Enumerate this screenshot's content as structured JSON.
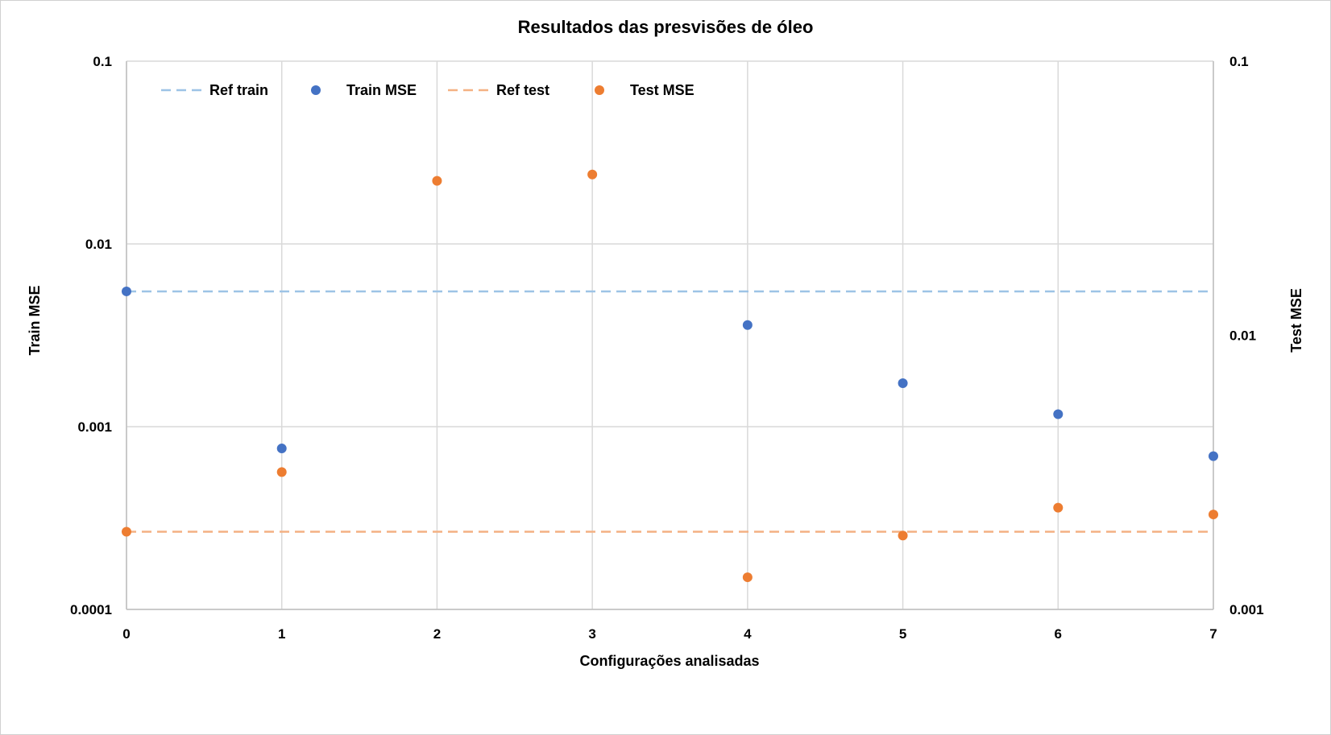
{
  "chart_data": {
    "type": "scatter",
    "title": "Resultados das presvisões de óleo",
    "xlabel": "Configurações analisadas",
    "ylabel": "Train MSE",
    "y2label": "Test  MSE",
    "x_ticks": [
      "0",
      "1",
      "2",
      "3",
      "4",
      "5",
      "6",
      "7"
    ],
    "xlim": [
      0,
      7
    ],
    "y_scale": "log",
    "ylim": [
      0.0001,
      0.1
    ],
    "y_ticks": [
      "0.0001",
      "0.001",
      "0.01",
      "0.1"
    ],
    "y2_scale": "log",
    "y2lim": [
      0.001,
      0.1
    ],
    "y2_ticks": [
      "0.001",
      "0.01",
      "0.1"
    ],
    "grid": true,
    "legend_position": "top-left",
    "series": [
      {
        "name": "Ref train",
        "style": "dashed-line",
        "axis": "left",
        "color": "#9dc3e6",
        "x": [
          0,
          7
        ],
        "y": [
          0.0055,
          0.0055
        ]
      },
      {
        "name": "Train MSE",
        "style": "marker",
        "axis": "left",
        "color": "#4472c4",
        "x": [
          0,
          1,
          4,
          5,
          6,
          7
        ],
        "y": [
          0.0055,
          0.00076,
          0.0036,
          0.00173,
          0.00117,
          0.00069
        ]
      },
      {
        "name": "Ref test",
        "style": "dashed-line",
        "axis": "right",
        "color": "#f4b183",
        "x": [
          0,
          7
        ],
        "y": [
          0.00192,
          0.00192
        ]
      },
      {
        "name": "Test MSE",
        "style": "marker",
        "axis": "right",
        "color": "#ed7d31",
        "x": [
          0,
          1,
          2,
          3,
          4,
          5,
          6,
          7
        ],
        "y": [
          0.00192,
          0.00317,
          0.0366,
          0.0386,
          0.00131,
          0.00186,
          0.00235,
          0.00222
        ]
      }
    ]
  }
}
